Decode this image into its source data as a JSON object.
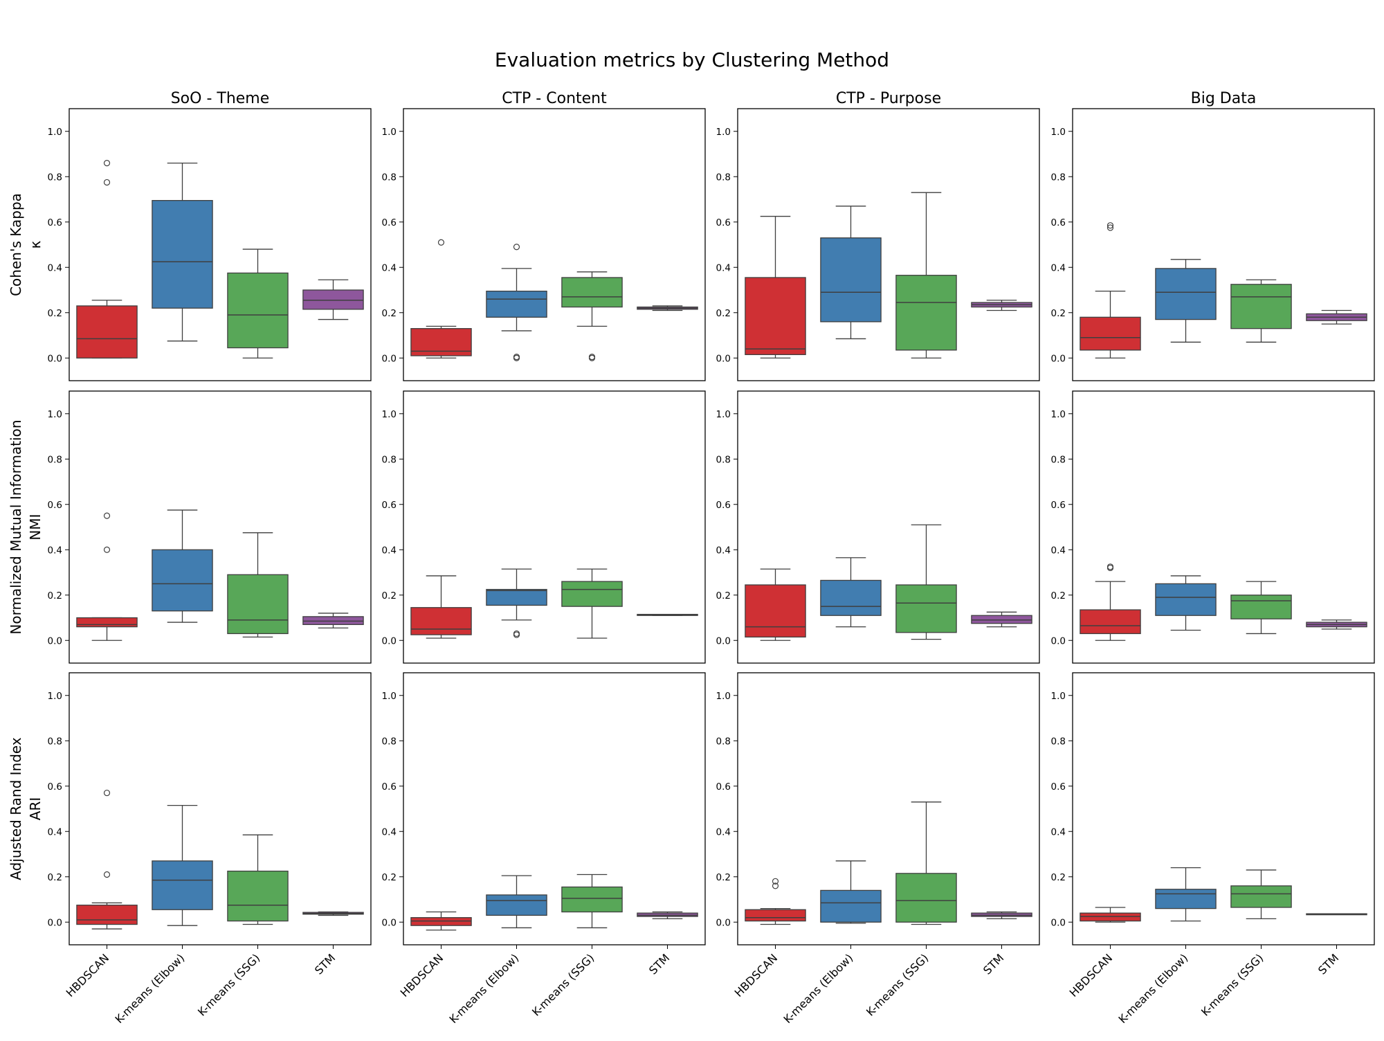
{
  "chart_data": {
    "type": "box",
    "title": "Evaluation metrics by Clustering Method",
    "columns": [
      "SoO - Theme",
      "CTP - Content",
      "CTP - Purpose",
      "Big Data"
    ],
    "rows": [
      {
        "label": "Cohen's Kappa",
        "sublabel": "κ"
      },
      {
        "label": "Normalized Mutual Information",
        "sublabel": "NMI"
      },
      {
        "label": "Adjusted Rand Index",
        "sublabel": "ARI"
      }
    ],
    "categories": [
      "HBDSCAN",
      "K-means (Elbow)",
      "K-means (SSG)",
      "STM"
    ],
    "colors": [
      "#cf3034",
      "#417db0",
      "#58a758",
      "#8e579c"
    ],
    "edge_color": "#3f3f3f",
    "ylim": [
      -0.1,
      1.1
    ],
    "yticks": [
      0.0,
      0.2,
      0.4,
      0.6,
      0.8,
      1.0
    ],
    "box_fields": [
      "whisker_low",
      "q1",
      "median",
      "q3",
      "whisker_high",
      "outliers"
    ],
    "panels": [
      [
        [
          [
            0,
            0,
            0.085,
            0.23,
            0.255,
            [
              0.775,
              0.86
            ]
          ],
          [
            0.075,
            0.22,
            0.425,
            0.695,
            0.86,
            []
          ],
          [
            0,
            0.045,
            0.19,
            0.375,
            0.48,
            []
          ],
          [
            0.17,
            0.215,
            0.255,
            0.3,
            0.345,
            []
          ]
        ],
        [
          [
            0,
            0.01,
            0.03,
            0.13,
            0.14,
            [
              0.51
            ]
          ],
          [
            0.12,
            0.18,
            0.26,
            0.295,
            0.395,
            [
              0.49,
              0.0,
              0.005
            ]
          ],
          [
            0.14,
            0.225,
            0.27,
            0.355,
            0.38,
            [
              0.0,
              0.005
            ]
          ],
          [
            0.21,
            0.215,
            0.22,
            0.225,
            0.23,
            []
          ]
        ],
        [
          [
            0,
            0.015,
            0.04,
            0.355,
            0.625,
            []
          ],
          [
            0.085,
            0.16,
            0.29,
            0.53,
            0.67,
            []
          ],
          [
            0,
            0.035,
            0.245,
            0.365,
            0.73,
            []
          ],
          [
            0.21,
            0.225,
            0.235,
            0.245,
            0.255,
            []
          ]
        ],
        [
          [
            0,
            0.035,
            0.09,
            0.18,
            0.295,
            [
              0.575,
              0.585
            ]
          ],
          [
            0.07,
            0.17,
            0.29,
            0.395,
            0.435,
            []
          ],
          [
            0.07,
            0.13,
            0.27,
            0.325,
            0.345,
            []
          ],
          [
            0.15,
            0.165,
            0.18,
            0.195,
            0.21,
            []
          ]
        ]
      ],
      [
        [
          [
            0,
            0.06,
            0.07,
            0.1,
            0.1,
            [
              0.4,
              0.55
            ]
          ],
          [
            0.08,
            0.13,
            0.25,
            0.4,
            0.575,
            []
          ],
          [
            0.015,
            0.03,
            0.09,
            0.29,
            0.475,
            []
          ],
          [
            0.055,
            0.07,
            0.085,
            0.105,
            0.12,
            []
          ]
        ],
        [
          [
            0.01,
            0.025,
            0.05,
            0.145,
            0.285,
            []
          ],
          [
            0.09,
            0.155,
            0.22,
            0.225,
            0.315,
            [
              0.025,
              0.03
            ]
          ],
          [
            0.01,
            0.15,
            0.225,
            0.26,
            0.315,
            []
          ],
          [
            0.11,
            0.11,
            0.112,
            0.115,
            0.115,
            []
          ]
        ],
        [
          [
            0,
            0.015,
            0.06,
            0.245,
            0.315,
            []
          ],
          [
            0.06,
            0.11,
            0.15,
            0.265,
            0.365,
            []
          ],
          [
            0.005,
            0.035,
            0.165,
            0.245,
            0.51,
            []
          ],
          [
            0.06,
            0.075,
            0.09,
            0.11,
            0.125,
            []
          ]
        ],
        [
          [
            0,
            0.03,
            0.065,
            0.135,
            0.26,
            [
              0.32,
              0.325
            ]
          ],
          [
            0.045,
            0.11,
            0.19,
            0.25,
            0.285,
            []
          ],
          [
            0.03,
            0.095,
            0.175,
            0.2,
            0.26,
            []
          ],
          [
            0.05,
            0.06,
            0.07,
            0.08,
            0.09,
            []
          ]
        ]
      ],
      [
        [
          [
            -0.03,
            -0.01,
            0.01,
            0.075,
            0.085,
            [
              0.21,
              0.57
            ]
          ],
          [
            -0.015,
            0.055,
            0.185,
            0.27,
            0.515,
            []
          ],
          [
            -0.01,
            0.005,
            0.075,
            0.225,
            0.385,
            []
          ],
          [
            0.03,
            0.035,
            0.038,
            0.043,
            0.045,
            []
          ]
        ],
        [
          [
            -0.035,
            -0.015,
            0.005,
            0.02,
            0.045,
            []
          ],
          [
            -0.025,
            0.03,
            0.095,
            0.12,
            0.205,
            []
          ],
          [
            -0.025,
            0.045,
            0.105,
            0.155,
            0.21,
            []
          ],
          [
            0.015,
            0.025,
            0.03,
            0.04,
            0.045,
            []
          ]
        ],
        [
          [
            -0.01,
            0.005,
            0.02,
            0.055,
            0.06,
            [
              0.16,
              0.18
            ]
          ],
          [
            -0.005,
            0,
            0.085,
            0.14,
            0.27,
            []
          ],
          [
            -0.01,
            0,
            0.095,
            0.215,
            0.53,
            []
          ],
          [
            0.015,
            0.025,
            0.03,
            0.04,
            0.045,
            []
          ]
        ],
        [
          [
            0,
            0.005,
            0.025,
            0.04,
            0.065,
            []
          ],
          [
            0.005,
            0.06,
            0.125,
            0.145,
            0.24,
            []
          ],
          [
            0.015,
            0.065,
            0.125,
            0.16,
            0.23,
            []
          ],
          [
            0.035,
            0.035,
            0.036,
            0.037,
            0.037,
            []
          ]
        ]
      ]
    ]
  }
}
